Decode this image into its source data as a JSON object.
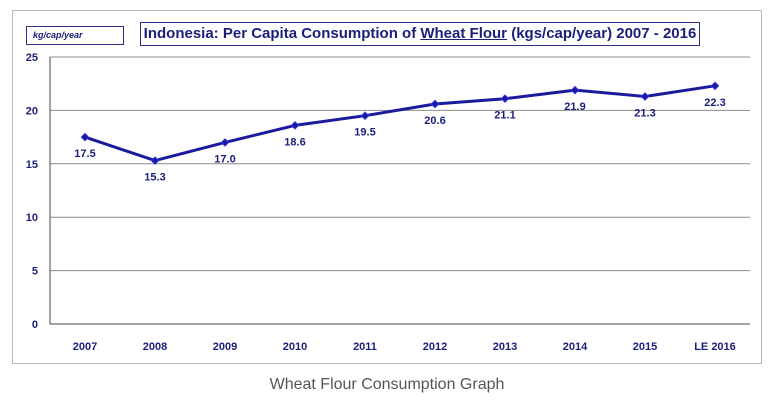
{
  "chart_data": {
    "type": "line",
    "title_parts": {
      "before": "Indonesia: Per Capita Consumption of ",
      "underlined": "Wheat Flour",
      "after": " (kgs/cap/year)  2007 - 2016"
    },
    "unit_label": "kg/cap/year",
    "categories": [
      "2007",
      "2008",
      "2009",
      "2010",
      "2011",
      "2012",
      "2013",
      "2014",
      "2015",
      "LE 2016"
    ],
    "series": [
      {
        "values": [
          17.5,
          15.3,
          17.0,
          18.6,
          19.5,
          20.6,
          21.1,
          21.9,
          21.3,
          22.3
        ]
      }
    ],
    "data_labels": [
      "17.5",
      "15.3",
      "17.0",
      "18.6",
      "19.5",
      "20.6",
      "21.1",
      "21.9",
      "21.3",
      "22.3"
    ],
    "yticks": [
      "0",
      "5",
      "10",
      "15",
      "20",
      "25"
    ],
    "ylim": [
      0,
      25
    ],
    "grid": true,
    "line_color": "#1a1a9c"
  },
  "caption": "Wheat Flour Consumption Graph"
}
